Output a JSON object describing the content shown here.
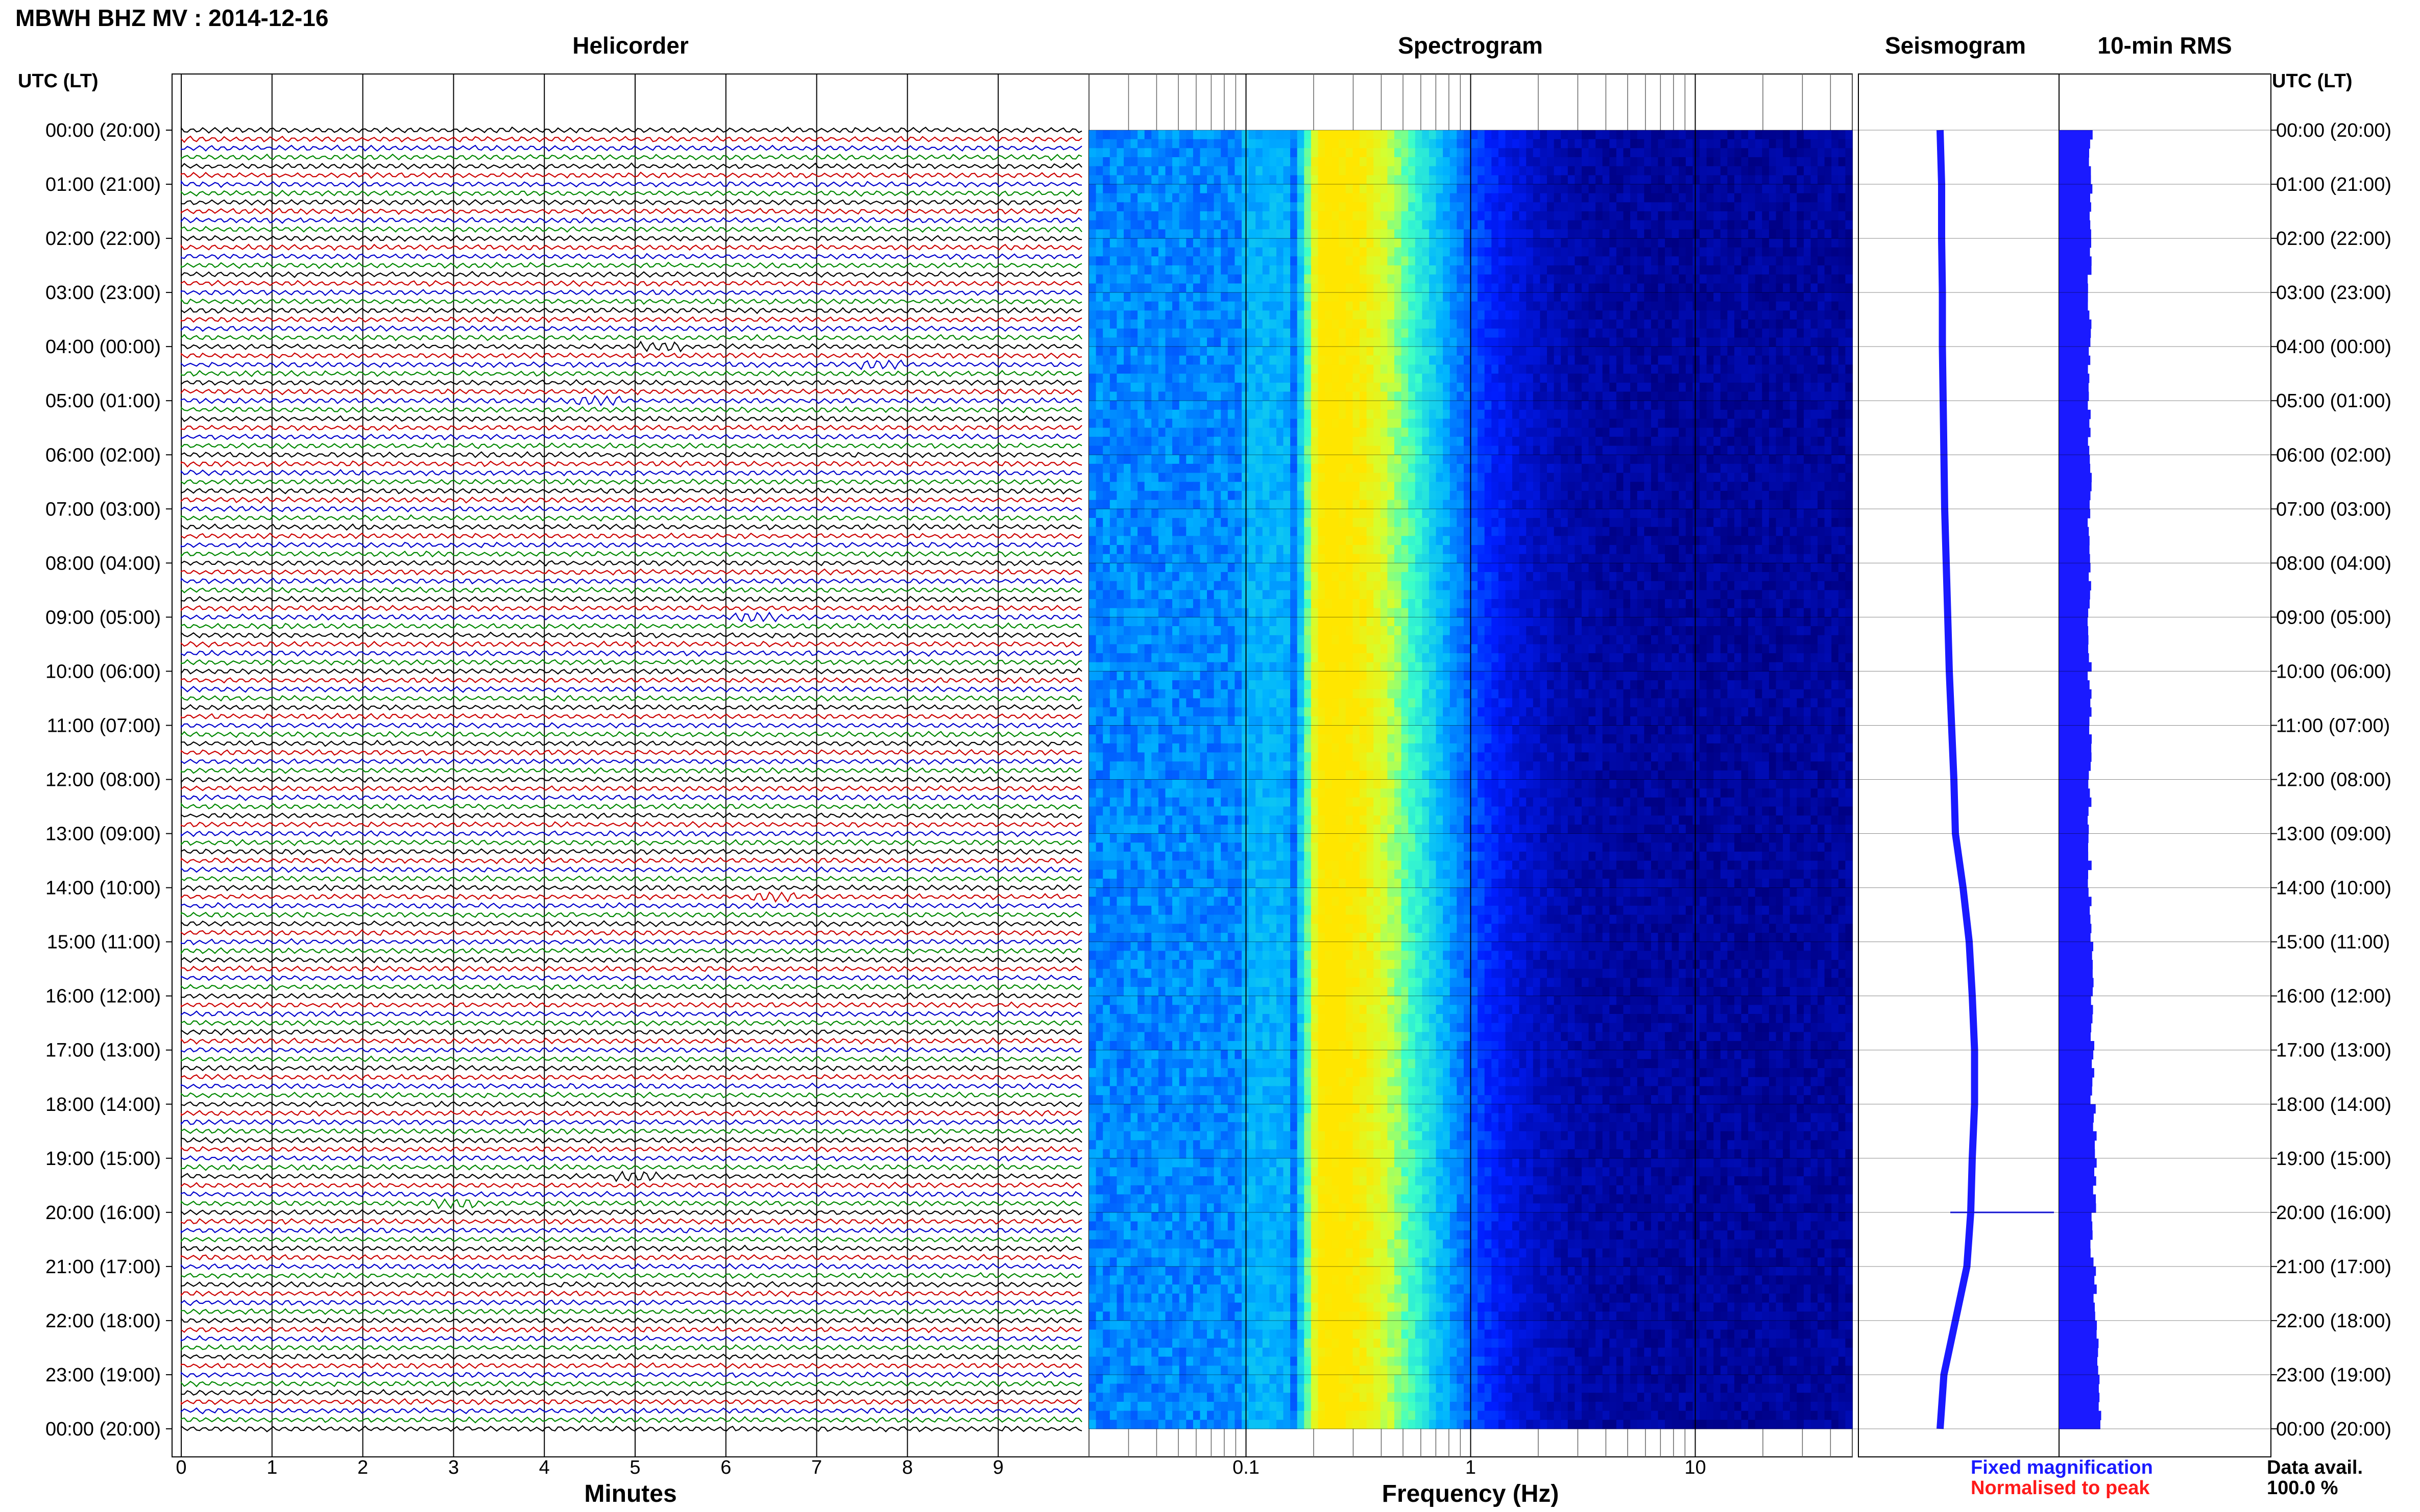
{
  "header": {
    "title": "MBWH BHZ MV : 2014-12-16"
  },
  "panels": {
    "helicorder": "Helicorder",
    "spectrogram": "Spectrogram",
    "seismogram": "Seismogram",
    "rms": "10-min RMS"
  },
  "axes": {
    "time_header": "UTC (LT)",
    "helicorder_xlabel": "Minutes",
    "spectrogram_xlabel": "Frequency (Hz)"
  },
  "legend": {
    "blue": "Fixed magnification",
    "red": "Normalised to peak"
  },
  "availability": {
    "label": "Data avail.",
    "value": "100.0 %"
  },
  "colors": {
    "trace_black": "#000000",
    "trace_red": "#cc0000",
    "trace_blue": "#0000cc",
    "trace_green": "#008800",
    "accent_blue": "#1a1aff"
  },
  "chart_data": {
    "type": "heatmap",
    "time_ticks": [
      "00:00 (20:00)",
      "01:00 (21:00)",
      "02:00 (22:00)",
      "03:00 (23:00)",
      "04:00 (00:00)",
      "05:00 (01:00)",
      "06:00 (02:00)",
      "07:00 (03:00)",
      "08:00 (04:00)",
      "09:00 (05:00)",
      "10:00 (06:00)",
      "11:00 (07:00)",
      "12:00 (08:00)",
      "13:00 (09:00)",
      "14:00 (10:00)",
      "15:00 (11:00)",
      "16:00 (12:00)",
      "17:00 (13:00)",
      "18:00 (14:00)",
      "19:00 (15:00)",
      "20:00 (16:00)",
      "21:00 (17:00)",
      "22:00 (18:00)",
      "23:00 (19:00)",
      "00:00 (20:00)"
    ],
    "helicorder": {
      "xticks": [
        0,
        1,
        2,
        3,
        4,
        5,
        6,
        7,
        8,
        9
      ],
      "xlim": [
        0,
        10
      ],
      "lines_per_hour": 6,
      "trace_color_cycle": [
        "black",
        "red",
        "blue",
        "green"
      ],
      "events": [
        {
          "hour": 4.0,
          "minute": 5.3
        },
        {
          "hour": 4.4,
          "minute": 7.7
        },
        {
          "hour": 5.0,
          "minute": 4.6
        },
        {
          "hour": 9.0,
          "minute": 6.3
        },
        {
          "hour": 14.1,
          "minute": 6.5
        },
        {
          "hour": 19.3,
          "minute": 5.0
        },
        {
          "hour": 19.8,
          "minute": 3.0
        }
      ]
    },
    "spectrogram": {
      "xscale": "log",
      "xlim": [
        0.02,
        50
      ],
      "xtick_labels": [
        {
          "v": 0.1,
          "t": "0.1"
        },
        {
          "v": 1,
          "t": "1"
        },
        {
          "v": 10,
          "t": "10"
        }
      ],
      "peak_frequency_hz": 0.22
    },
    "seismogram": {
      "offset_by_hour": [
        0,
        0.02,
        0.02,
        0.03,
        0.03,
        0.04,
        0.05,
        0.06,
        0.08,
        0.1,
        0.12,
        0.15,
        0.18,
        0.2,
        0.3,
        0.38,
        0.42,
        0.45,
        0.45,
        0.42,
        0.4,
        0.35,
        0.2,
        0.05,
        0
      ]
    },
    "rms": {
      "values": [
        0.62,
        0.62,
        0.6,
        0.6,
        0.6,
        0.6,
        0.6,
        0.6,
        0.6,
        0.6,
        0.6,
        0.6,
        0.6,
        0.6,
        0.6,
        0.65,
        0.65,
        0.65,
        0.7,
        0.7,
        0.65,
        0.7,
        0.75,
        0.8,
        0.65
      ]
    }
  }
}
